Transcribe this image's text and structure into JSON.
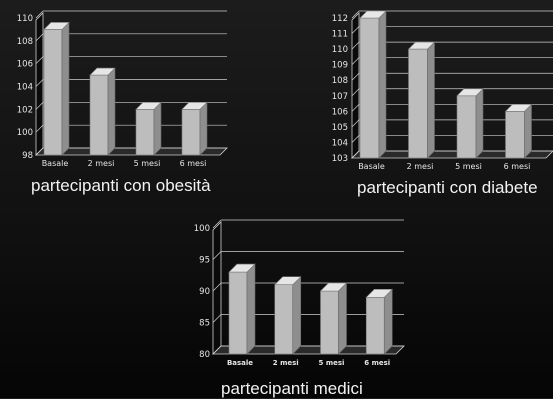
{
  "chart_data": [
    {
      "type": "bar",
      "categories": [
        "Basale",
        "2 mesi",
        "5 mesi",
        "6 mesi"
      ],
      "values": [
        109,
        105,
        102,
        102
      ],
      "ylim": [
        98,
        110
      ],
      "yticks": [
        98,
        100,
        102,
        104,
        106,
        108,
        110
      ],
      "title": "partecipanti con obesità",
      "grid": true,
      "bar_color": "#bdbdbd"
    },
    {
      "type": "bar",
      "categories": [
        "Basale",
        "2 mesi",
        "5 mesi",
        "6 mesi"
      ],
      "values": [
        112,
        110,
        107,
        106
      ],
      "ylim": [
        103,
        112
      ],
      "yticks": [
        103,
        104,
        105,
        106,
        107,
        108,
        109,
        110,
        111,
        112
      ],
      "title": "partecipanti con diabete",
      "grid": true,
      "bar_color": "#bdbdbd"
    },
    {
      "type": "bar",
      "categories": [
        "Basale",
        "2 mesi",
        "5 mesi",
        "6 mesi"
      ],
      "values": [
        93,
        91,
        90,
        89
      ],
      "ylim": [
        80,
        100
      ],
      "yticks": [
        80,
        85,
        90,
        95,
        100
      ],
      "title": "partecipanti medici",
      "grid": true,
      "bar_color": "#bdbdbd"
    }
  ]
}
